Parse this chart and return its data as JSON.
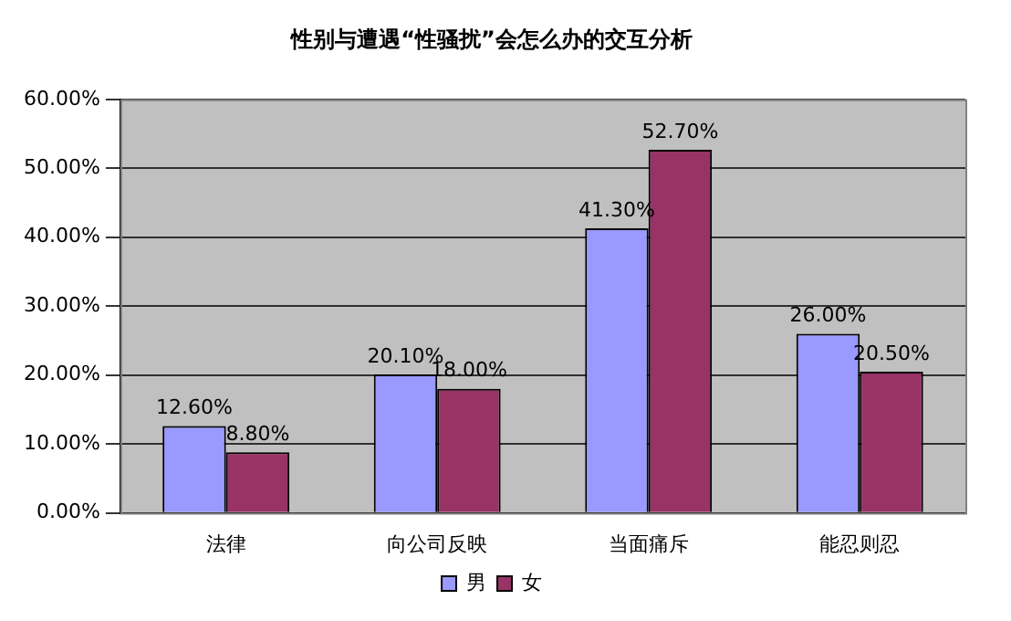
{
  "chart_data": {
    "type": "bar",
    "title": "性别与遭遇“性骚扰”会怎么办的交互分析",
    "categories": [
      "法律",
      "向公司反映",
      "当面痛斥",
      "能忍则忍"
    ],
    "series": [
      {
        "name": "男",
        "color": "#9999ff",
        "values": [
          12.6,
          20.1,
          41.3,
          26.0
        ],
        "value_labels": [
          "12.60%",
          "20.10%",
          "41.30%",
          "26.00%"
        ]
      },
      {
        "name": "女",
        "color": "#993366",
        "values": [
          8.8,
          18.0,
          52.7,
          20.5
        ],
        "value_labels": [
          "8.80%",
          "18.00%",
          "52.70%",
          "20.50%"
        ]
      }
    ],
    "ylim": [
      0,
      60
    ],
    "yticks": [
      {
        "value": 0,
        "label": "0.00%"
      },
      {
        "value": 10,
        "label": "10.00%"
      },
      {
        "value": 20,
        "label": "20.00%"
      },
      {
        "value": 30,
        "label": "30.00%"
      },
      {
        "value": 40,
        "label": "40.00%"
      },
      {
        "value": 50,
        "label": "50.00%"
      },
      {
        "value": 60,
        "label": "60.00%"
      }
    ],
    "grid": "y",
    "legend": "bottom"
  }
}
